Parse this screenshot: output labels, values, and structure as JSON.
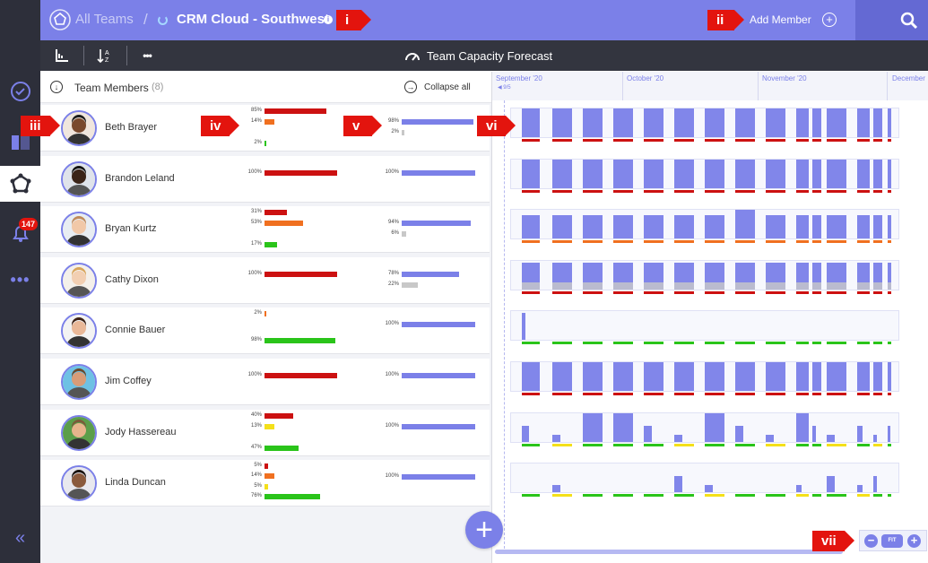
{
  "header": {
    "team_switch": "All Teams",
    "separator": "/",
    "team_name": "CRM Cloud - Southwest",
    "add_member": "Add Member"
  },
  "toolbar": {
    "title": "Team Capacity Forecast"
  },
  "sidebar": {
    "notification_count": "147"
  },
  "members_panel": {
    "title": "Team Members",
    "count": "(8)",
    "collapse_label": "Collapse all"
  },
  "timeline": {
    "months": [
      "September '20",
      "October '20",
      "November '20",
      "December"
    ],
    "today_marker": "◀ 9/5"
  },
  "zoom": {
    "fit_label": "FIT"
  },
  "callouts": [
    "i",
    "ii",
    "iii",
    "iv",
    "v",
    "vi",
    "vii"
  ],
  "colors": {
    "accent": "#7b80e8",
    "over": "#cc1111",
    "high": "#f07020",
    "low": "#f4e01a",
    "available": "#2ac41a",
    "capacity": "#7b80e8",
    "unassigned": "#c8c8c8"
  },
  "members": [
    {
      "name": "Beth Brayer",
      "alloc": [
        {
          "label": "85%",
          "value": 85,
          "color": "#cc1111"
        },
        {
          "label": "14%",
          "value": 14,
          "color": "#f07020"
        },
        {
          "label": "2%",
          "value": 2,
          "color": "#2ac41a"
        }
      ],
      "capacity": [
        {
          "label": "98%",
          "value": 98,
          "color": "#7b80e8"
        },
        {
          "label": "2%",
          "value": 2,
          "color": "#c8c8c8"
        }
      ],
      "pattern": "aaaaaaaaaaaaaaaaaa"
    },
    {
      "name": "Brandon Leland",
      "alloc": [
        {
          "label": "100%",
          "value": 100,
          "color": "#cc1111"
        }
      ],
      "capacity": [
        {
          "label": "100%",
          "value": 100,
          "color": "#7b80e8"
        }
      ],
      "pattern": "aaaaaaaaaaaaaaaaaa"
    },
    {
      "name": "Bryan Kurtz",
      "alloc": [
        {
          "label": "31%",
          "value": 31,
          "color": "#cc1111"
        },
        {
          "label": "53%",
          "value": 53,
          "color": "#f07020"
        },
        {
          "label": "17%",
          "value": 17,
          "color": "#2ac41a"
        }
      ],
      "capacity": [
        {
          "label": "94%",
          "value": 94,
          "color": "#7b80e8"
        },
        {
          "label": "6%",
          "value": 6,
          "color": "#c8c8c8"
        }
      ],
      "pattern": "mmmmmmmhmmmmmmmlmm"
    },
    {
      "name": "Cathy Dixon",
      "alloc": [
        {
          "label": "100%",
          "value": 100,
          "color": "#cc1111"
        }
      ],
      "capacity": [
        {
          "label": "78%",
          "value": 78,
          "color": "#7b80e8"
        },
        {
          "label": "22%",
          "value": 22,
          "color": "#c8c8c8"
        }
      ],
      "pattern": "pppppppppppppppppp"
    },
    {
      "name": "Connie Bauer",
      "alloc": [
        {
          "label": "2%",
          "value": 2,
          "color": "#f07020"
        },
        {
          "label": "98%",
          "value": 98,
          "color": "#2ac41a"
        }
      ],
      "capacity": [
        {
          "label": "100%",
          "value": 100,
          "color": "#7b80e8"
        }
      ],
      "pattern": "s-----------------"
    },
    {
      "name": "Jim Coffey",
      "alloc": [
        {
          "label": "100%",
          "value": 100,
          "color": "#cc1111"
        }
      ],
      "capacity": [
        {
          "label": "100%",
          "value": 100,
          "color": "#7b80e8"
        }
      ],
      "pattern": "aaaaaaaaaaaaaaaaaa"
    },
    {
      "name": "Jody Hassereau",
      "alloc": [
        {
          "label": "40%",
          "value": 40,
          "color": "#cc1111"
        },
        {
          "label": "13%",
          "value": 13,
          "color": "#f4e01a"
        },
        {
          "label": "47%",
          "value": 47,
          "color": "#2ac41a"
        }
      ],
      "capacity": [
        {
          "label": "100%",
          "value": 100,
          "color": "#7b80e8"
        }
      ],
      "pattern": "xyhhxyhxyhxyxyxhxy"
    },
    {
      "name": "Linda Duncan",
      "alloc": [
        {
          "label": "5%",
          "value": 5,
          "color": "#cc1111"
        },
        {
          "label": "14%",
          "value": 14,
          "color": "#f07020"
        },
        {
          "label": "5%",
          "value": 5,
          "color": "#f4e01a"
        },
        {
          "label": "76%",
          "value": 76,
          "color": "#2ac41a"
        }
      ],
      "capacity": [
        {
          "label": "100%",
          "value": 100,
          "color": "#7b80e8"
        }
      ],
      "pattern": "-y---xy--y-xyx-hhy"
    }
  ]
}
